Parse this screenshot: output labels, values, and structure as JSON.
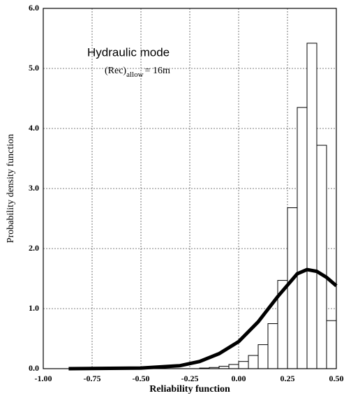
{
  "chart_data": {
    "type": "histogram",
    "xlabel": "Reliability function",
    "ylabel": "Probability density function",
    "annotation": {
      "title": "Hydraulic mode",
      "base": "(Rec)",
      "sub": "allow",
      "rest": "= 16m"
    },
    "bins": [
      -0.2,
      -0.15,
      -0.1,
      -0.05,
      0,
      0.05,
      0.1,
      0.15,
      0.2,
      0.25,
      0.3,
      0.35,
      0.4,
      0.45,
      0.5
    ],
    "values": [
      0.01,
      0.02,
      0.04,
      0.07,
      0.12,
      0.22,
      0.4,
      0.75,
      1.47,
      2.68,
      4.35,
      5.42,
      3.72,
      0.8
    ],
    "color": "#ffffff",
    "curve": {
      "type": "line",
      "color": "#000000",
      "x": [
        -0.87,
        -0.5,
        -0.3,
        -0.2,
        -0.1,
        0,
        0.1,
        0.2,
        0.3,
        0.35,
        0.4,
        0.45,
        0.5
      ],
      "values": [
        0,
        0.01,
        0.05,
        0.12,
        0.25,
        0.45,
        0.78,
        1.2,
        1.58,
        1.65,
        1.62,
        1.52,
        1.38
      ]
    },
    "xlim": [
      -1,
      0.5
    ],
    "ylim": [
      0,
      6
    ],
    "xticks": [
      {
        "value": -1,
        "label": "-1.00"
      },
      {
        "value": -0.75,
        "label": "-0.75"
      },
      {
        "value": -0.5,
        "label": "-0.50"
      },
      {
        "value": -0.25,
        "label": "-0.25"
      },
      {
        "value": 0,
        "label": "0.00"
      },
      {
        "value": 0.25,
        "label": "0.25"
      },
      {
        "value": 0.5,
        "label": "0.50"
      }
    ],
    "yticks": [
      {
        "value": 0,
        "label": "0.0"
      },
      {
        "value": 1,
        "label": "1.0"
      },
      {
        "value": 2,
        "label": "2.0"
      },
      {
        "value": 3,
        "label": "3.0"
      },
      {
        "value": 4,
        "label": "4.0"
      },
      {
        "value": 5,
        "label": "5.0"
      },
      {
        "value": 6,
        "label": "6.0"
      }
    ],
    "grid": true
  }
}
